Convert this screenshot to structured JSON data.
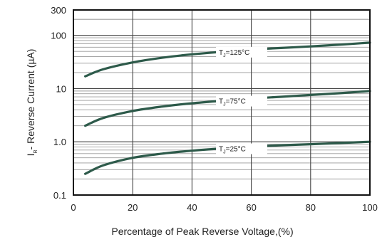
{
  "chart_data": {
    "type": "line",
    "title": "",
    "xlabel": "Percentage of Peak Reverse Voltage,(%)",
    "ylabel": "I",
    "ylabel_sub": "R",
    "ylabel_rest": "- Reverse Current (µA)",
    "xlim": [
      0,
      100
    ],
    "ylim": [
      0.1,
      300
    ],
    "yscale": "log",
    "grid": true,
    "x_ticks": [
      0,
      20,
      40,
      60,
      80,
      100
    ],
    "x_tick_labels": [
      "0",
      "20",
      "40",
      "60",
      "80",
      "100"
    ],
    "y_ticks": [
      0.1,
      1.0,
      10,
      100,
      300
    ],
    "y_tick_labels": [
      "0.1",
      "1.0",
      "10",
      "100",
      "300"
    ],
    "series": [
      {
        "name": "TJ=125°C",
        "label_main": "T",
        "label_sub": "J",
        "label_rest": "=125°C",
        "label_x": 50,
        "color": "#2d5a4a",
        "x": [
          4,
          10,
          20,
          30,
          40,
          50,
          60,
          70,
          80,
          90,
          100
        ],
        "y": [
          17,
          23,
          31,
          38,
          44,
          49,
          54,
          58,
          62,
          67,
          73
        ]
      },
      {
        "name": "TJ=75°C",
        "label_main": "T",
        "label_sub": "J",
        "label_rest": "=75°C",
        "label_x": 50,
        "color": "#2d5a4a",
        "x": [
          4,
          10,
          20,
          30,
          40,
          50,
          60,
          70,
          80,
          90,
          100
        ],
        "y": [
          2.0,
          2.8,
          3.8,
          4.6,
          5.3,
          5.9,
          6.5,
          7.0,
          7.6,
          8.2,
          9.0
        ]
      },
      {
        "name": "TJ=25°C",
        "label_main": "T",
        "label_sub": "J",
        "label_rest": "=25°C",
        "label_x": 50,
        "color": "#2d5a4a",
        "x": [
          4,
          10,
          20,
          30,
          40,
          50,
          60,
          70,
          80,
          90,
          100
        ],
        "y": [
          0.25,
          0.36,
          0.5,
          0.6,
          0.68,
          0.75,
          0.81,
          0.86,
          0.9,
          0.95,
          1.0
        ]
      }
    ]
  }
}
